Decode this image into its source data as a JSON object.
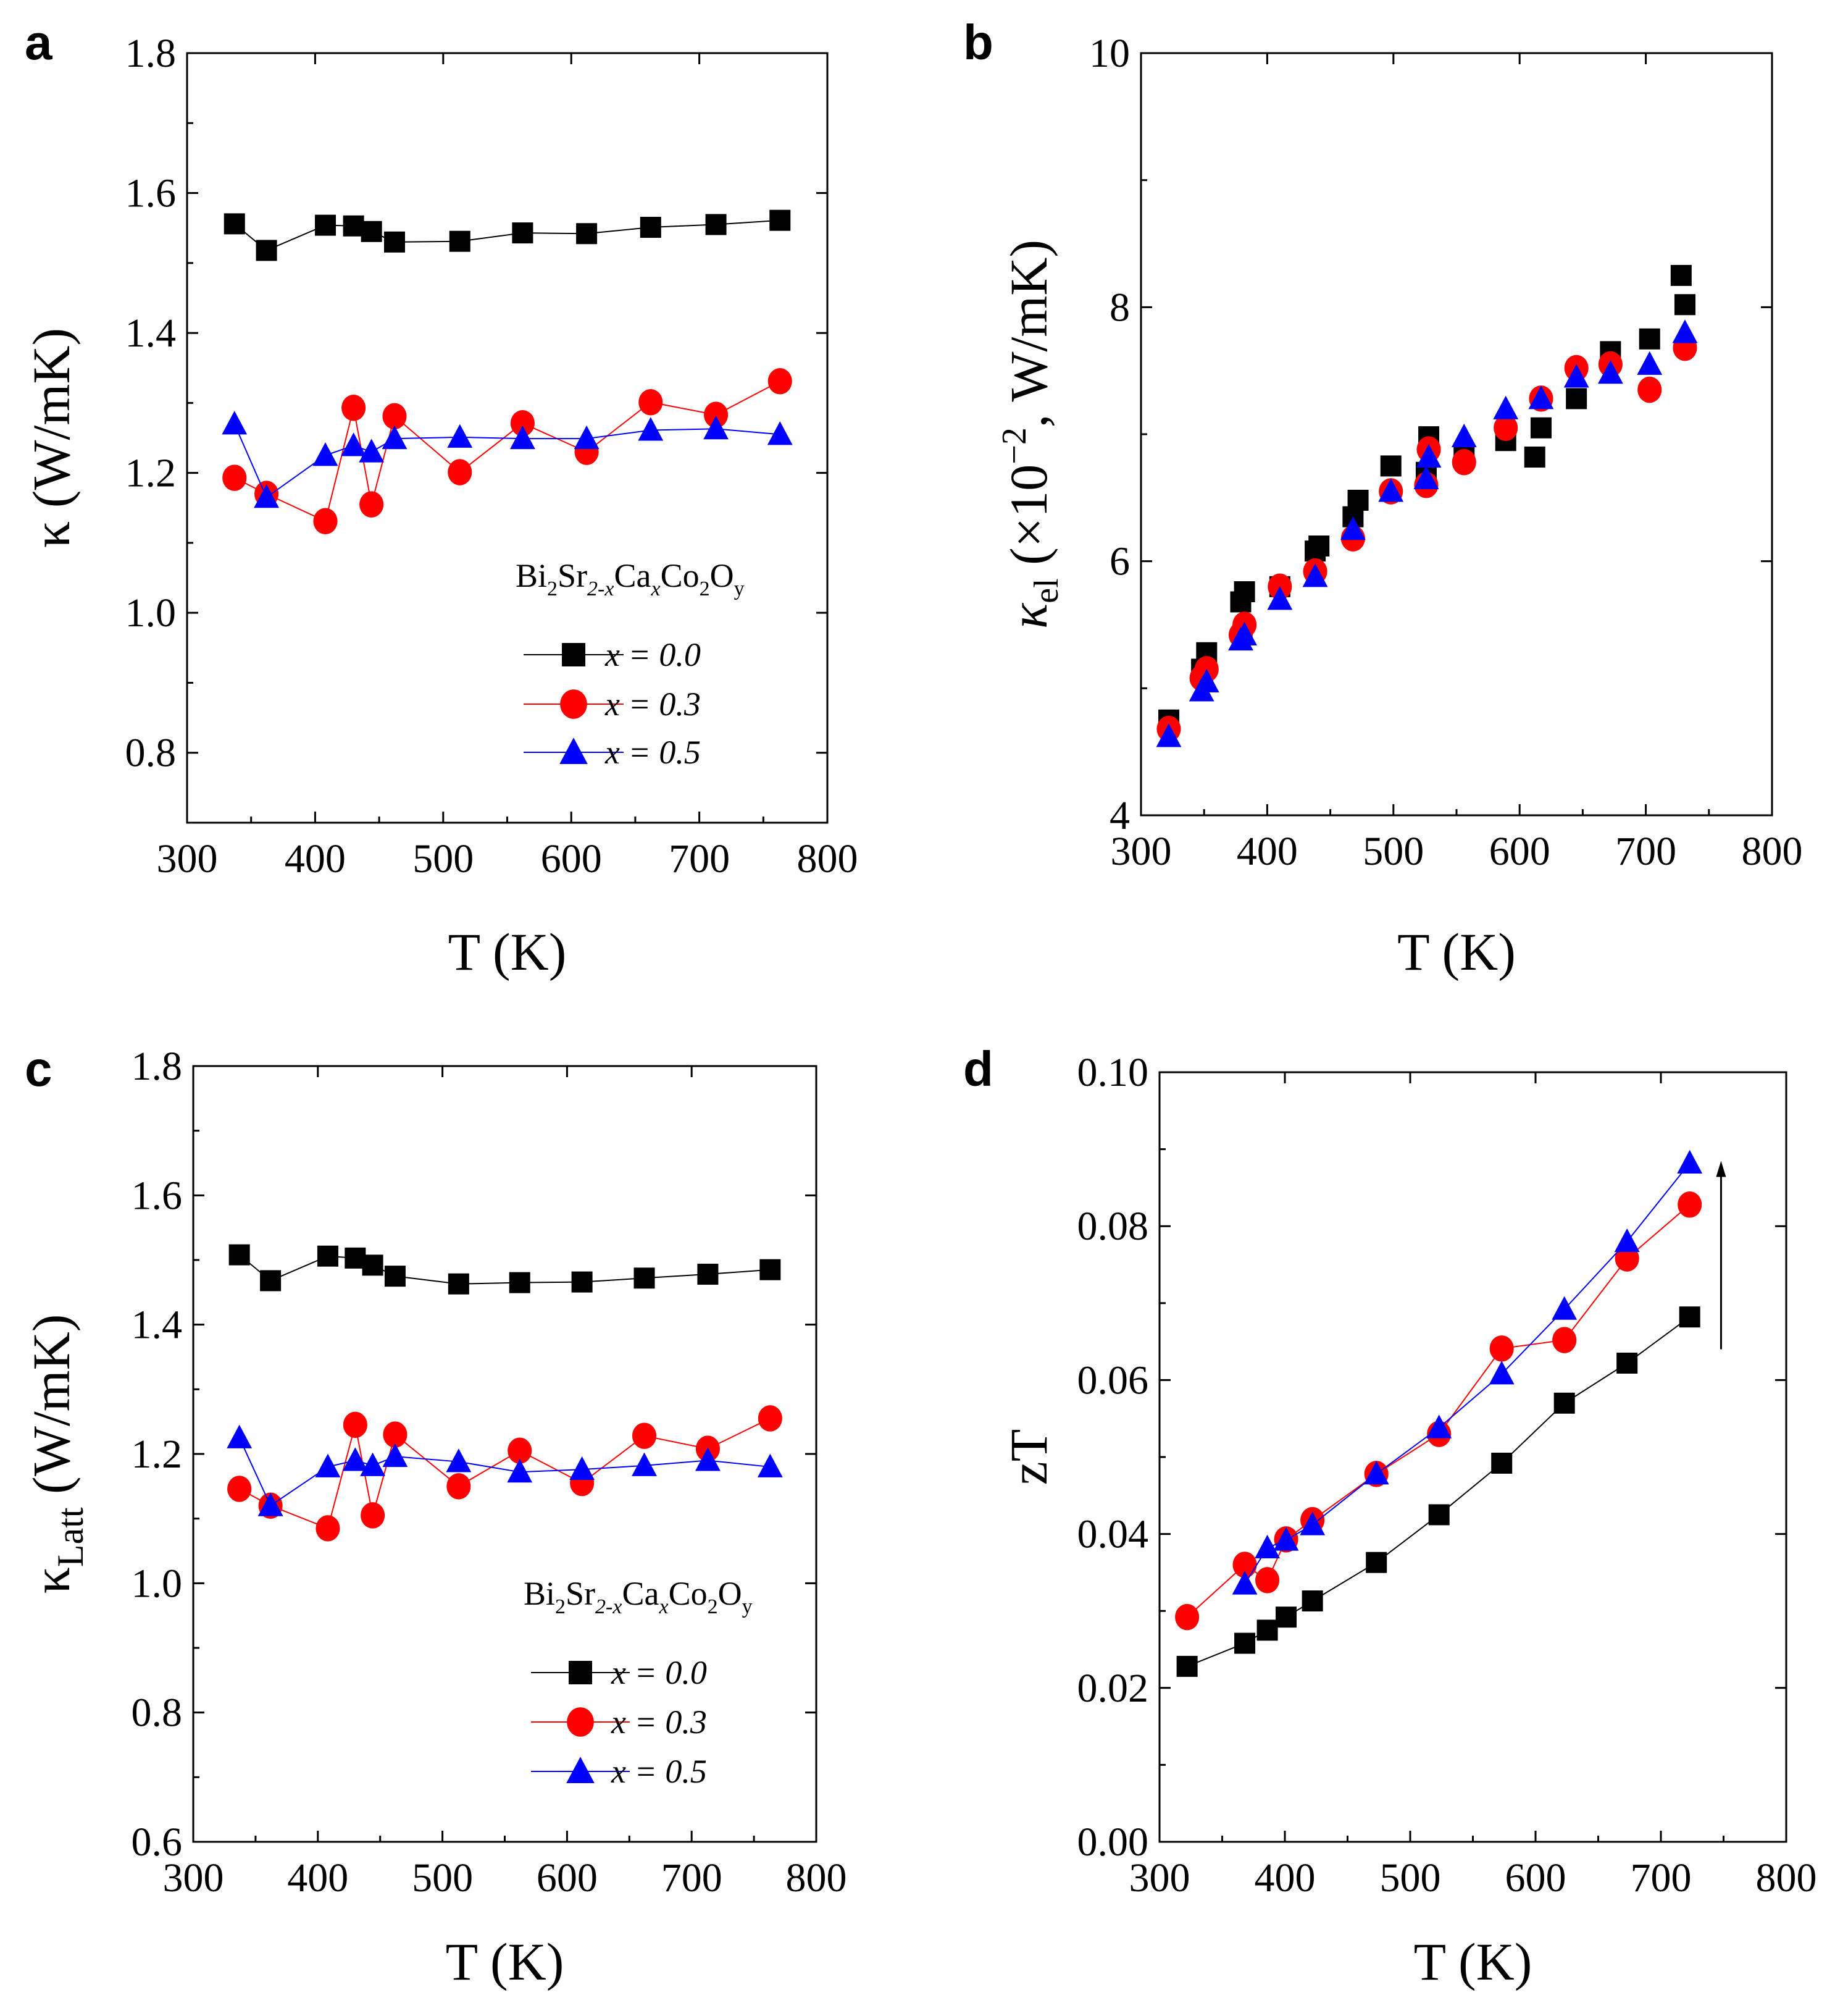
{
  "chart_data": [
    {
      "panel": "a",
      "type": "line",
      "xlabel": "T (K)",
      "ylabel": "κ (W/mK)",
      "xlim": [
        300,
        800
      ],
      "ylim": [
        0.7,
        1.8
      ],
      "xticks": [
        "300",
        "400",
        "500",
        "600",
        "700",
        "800"
      ],
      "yticks": [
        "0.8",
        "1.0",
        "1.2",
        "1.4",
        "1.6",
        "1.8"
      ],
      "legend": {
        "formula_parts": [
          "Bi",
          "2",
          "Sr",
          "2-x",
          "Ca",
          "x",
          "Co",
          "2",
          "O",
          "y"
        ],
        "entries": [
          "x = 0.0",
          "x = 0.3",
          "x = 0.5"
        ]
      },
      "series": [
        {
          "name": "x = 0.0",
          "color": "#000000",
          "marker": "square",
          "line": true,
          "x": [
            337,
            362,
            408,
            430,
            444,
            462,
            513,
            562,
            612,
            662,
            713,
            763
          ],
          "y": [
            1.556,
            1.518,
            1.554,
            1.553,
            1.545,
            1.53,
            1.531,
            1.543,
            1.542,
            1.551,
            1.555,
            1.561
          ]
        },
        {
          "name": "x = 0.3",
          "color": "#ff0000",
          "marker": "circle",
          "line": true,
          "x": [
            337,
            362,
            408,
            430,
            444,
            462,
            513,
            562,
            612,
            662,
            713,
            763
          ],
          "y": [
            1.193,
            1.17,
            1.131,
            1.293,
            1.155,
            1.281,
            1.201,
            1.271,
            1.23,
            1.301,
            1.283,
            1.331
          ]
        },
        {
          "name": "x = 0.5",
          "color": "#0000ff",
          "marker": "triangle",
          "line": true,
          "x": [
            337,
            362,
            408,
            430,
            444,
            462,
            513,
            562,
            612,
            662,
            713,
            763
          ],
          "y": [
            1.27,
            1.165,
            1.225,
            1.239,
            1.23,
            1.249,
            1.251,
            1.249,
            1.249,
            1.261,
            1.263,
            1.255
          ]
        }
      ]
    },
    {
      "panel": "b",
      "type": "scatter",
      "xlabel": "T (K)",
      "ylabel": "κ_el (×10^-2, W/mK)",
      "ylabel_parts": [
        "κ",
        "el",
        "(×10",
        "−2",
        ", W/mK)"
      ],
      "xlim": [
        300,
        800
      ],
      "ylim": [
        4,
        10
      ],
      "xticks": [
        "300",
        "400",
        "500",
        "600",
        "700",
        "800"
      ],
      "yticks": [
        "4",
        "6",
        "8",
        "10"
      ],
      "series": [
        {
          "name": "x = 0.0",
          "color": "#000000",
          "marker": "square",
          "line": false,
          "x": [
            322,
            348,
            352,
            379,
            382,
            410,
            438,
            441,
            468,
            472,
            498,
            526,
            528,
            556,
            589,
            612,
            617,
            645,
            672,
            703,
            728,
            731
          ],
          "y": [
            4.75,
            5.15,
            5.28,
            5.68,
            5.76,
            5.8,
            6.08,
            6.12,
            6.35,
            6.48,
            6.75,
            6.7,
            6.98,
            6.82,
            6.95,
            6.82,
            7.05,
            7.28,
            7.65,
            7.75,
            8.25,
            8.02
          ]
        },
        {
          "name": "x = 0.3",
          "color": "#ff0000",
          "marker": "circle",
          "line": false,
          "x": [
            322,
            348,
            352,
            379,
            382,
            410,
            438,
            468,
            498,
            526,
            528,
            556,
            589,
            617,
            645,
            672,
            703,
            731
          ],
          "y": [
            4.68,
            5.08,
            5.15,
            5.42,
            5.5,
            5.8,
            5.92,
            6.18,
            6.55,
            6.6,
            6.88,
            6.78,
            7.05,
            7.28,
            7.52,
            7.55,
            7.35,
            7.68
          ]
        },
        {
          "name": "x = 0.5",
          "color": "#0000ff",
          "marker": "triangle",
          "line": false,
          "x": [
            322,
            348,
            352,
            379,
            382,
            410,
            438,
            468,
            498,
            526,
            528,
            556,
            589,
            617,
            645,
            672,
            703,
            731
          ],
          "y": [
            4.62,
            4.98,
            5.05,
            5.38,
            5.42,
            5.7,
            5.88,
            6.25,
            6.55,
            6.65,
            6.82,
            6.98,
            7.2,
            7.28,
            7.45,
            7.48,
            7.55,
            7.8
          ]
        }
      ]
    },
    {
      "panel": "c",
      "type": "line",
      "xlabel": "T (K)",
      "ylabel": "κ_Latt (W/mK)",
      "ylabel_parts": [
        "κ",
        "Latt",
        "(W/mK)"
      ],
      "xlim": [
        300,
        800
      ],
      "ylim": [
        0.6,
        1.8
      ],
      "xticks": [
        "300",
        "400",
        "500",
        "600",
        "700",
        "800"
      ],
      "yticks": [
        "0.6",
        "0.8",
        "1.0",
        "1.2",
        "1.4",
        "1.6",
        "1.8"
      ],
      "legend": {
        "formula_parts": [
          "Bi",
          "2",
          "Sr",
          "2-x",
          "Ca",
          "x",
          "Co",
          "2",
          "O",
          "y"
        ],
        "entries": [
          "x = 0.0",
          "x = 0.3",
          "x = 0.5"
        ]
      },
      "series": [
        {
          "name": "x = 0.0",
          "color": "#000000",
          "marker": "square",
          "line": true,
          "x": [
            337,
            362,
            408,
            430,
            444,
            462,
            513,
            562,
            612,
            662,
            713,
            763
          ],
          "y": [
            1.508,
            1.468,
            1.506,
            1.503,
            1.492,
            1.475,
            1.463,
            1.465,
            1.466,
            1.472,
            1.478,
            1.485
          ]
        },
        {
          "name": "x = 0.3",
          "color": "#ff0000",
          "marker": "circle",
          "line": true,
          "x": [
            337,
            362,
            408,
            430,
            444,
            462,
            513,
            562,
            612,
            662,
            713,
            763
          ],
          "y": [
            1.146,
            1.12,
            1.085,
            1.245,
            1.105,
            1.23,
            1.15,
            1.205,
            1.155,
            1.228,
            1.208,
            1.255
          ]
        },
        {
          "name": "x = 0.5",
          "color": "#0000ff",
          "marker": "triangle",
          "line": true,
          "x": [
            337,
            362,
            408,
            430,
            444,
            462,
            513,
            562,
            612,
            662,
            713,
            763
          ],
          "y": [
            1.225,
            1.12,
            1.18,
            1.19,
            1.182,
            1.196,
            1.188,
            1.172,
            1.176,
            1.182,
            1.19,
            1.18
          ]
        }
      ]
    },
    {
      "panel": "d",
      "type": "line",
      "xlabel": "T (K)",
      "ylabel": "zT",
      "xlim": [
        300,
        800
      ],
      "ylim": [
        0.0,
        0.1
      ],
      "xticks": [
        "300",
        "400",
        "500",
        "600",
        "700",
        "800"
      ],
      "yticks": [
        "0.00",
        "0.02",
        "0.04",
        "0.06",
        "0.08",
        "0.10"
      ],
      "annotation": "upward arrow near T = 748 K from zT 0.064 to 0.088",
      "arrow": {
        "x": 748,
        "y_from": 0.064,
        "y_to": 0.088
      },
      "series": [
        {
          "name": "x = 0.0",
          "color": "#000000",
          "marker": "square",
          "line": true,
          "x": [
            322,
            368,
            386,
            401,
            422,
            473,
            523,
            573,
            623,
            673,
            723
          ],
          "y": [
            0.0228,
            0.0258,
            0.0275,
            0.0292,
            0.0313,
            0.0363,
            0.0425,
            0.0492,
            0.057,
            0.0622,
            0.0682
          ]
        },
        {
          "name": "x = 0.3",
          "color": "#ff0000",
          "marker": "circle",
          "line": true,
          "x": [
            322,
            368,
            386,
            401,
            422,
            473,
            523,
            573,
            623,
            673,
            723
          ],
          "y": [
            0.0292,
            0.036,
            0.034,
            0.0393,
            0.0418,
            0.0478,
            0.053,
            0.0641,
            0.0652,
            0.0758,
            0.0828
          ]
        },
        {
          "name": "x = 0.5",
          "color": "#0000ff",
          "marker": "triangle",
          "line": true,
          "x": [
            368,
            386,
            401,
            422,
            473,
            523,
            573,
            623,
            673,
            723
          ],
          "y": [
            0.0335,
            0.0382,
            0.0392,
            0.0412,
            0.0478,
            0.0538,
            0.0608,
            0.0692,
            0.078,
            0.0882
          ]
        }
      ]
    }
  ]
}
